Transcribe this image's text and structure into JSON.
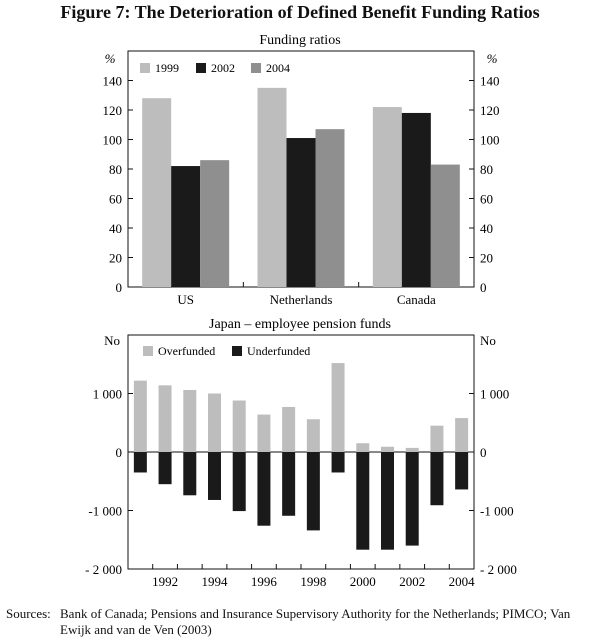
{
  "figure_title": "Figure 7: The Deterioration of Defined Benefit Funding Ratios",
  "sources_label": "Sources:",
  "sources_text": "Bank of Canada; Pensions and Insurance Supervisory Authority for the Netherlands; PIMCO; Van Ewijk and van de Ven (2003)",
  "colors": {
    "1999": "#bdbdbd",
    "2002": "#1a1a1a",
    "2004": "#8f8f8f",
    "overfunded": "#bdbdbd",
    "underfunded": "#1a1a1a"
  },
  "chart_data": [
    {
      "type": "bar",
      "title": "Funding ratios",
      "ylabel_left": "%",
      "ylabel_right": "%",
      "categories": [
        "US",
        "Netherlands",
        "Canada"
      ],
      "series": [
        {
          "name": "1999",
          "values": [
            128,
            135,
            122
          ]
        },
        {
          "name": "2002",
          "values": [
            82,
            101,
            118
          ]
        },
        {
          "name": "2004",
          "values": [
            86,
            107,
            83
          ]
        }
      ],
      "ylim": [
        0,
        160
      ],
      "yticks": [
        0,
        20,
        40,
        60,
        80,
        100,
        120,
        140
      ],
      "legend_position": "top-left",
      "grid": false
    },
    {
      "type": "bar",
      "title": "Japan – employee pension funds",
      "ylabel_left": "No",
      "ylabel_right": "No",
      "x": [
        1991,
        1992,
        1993,
        1994,
        1995,
        1996,
        1997,
        1998,
        1999,
        2000,
        2001,
        2002,
        2003,
        2004
      ],
      "xtick_labels": [
        "1992",
        "1994",
        "1996",
        "1998",
        "2000",
        "2002",
        "2004"
      ],
      "series": [
        {
          "name": "Overfunded",
          "values": [
            1220,
            1140,
            1060,
            1000,
            880,
            640,
            770,
            560,
            1520,
            150,
            90,
            70,
            450,
            580
          ]
        },
        {
          "name": "Underfunded",
          "values": [
            -350,
            -550,
            -740,
            -820,
            -1010,
            -1260,
            -1090,
            -1340,
            -350,
            -1670,
            -1670,
            -1600,
            -910,
            -640
          ]
        }
      ],
      "ylim": [
        -2000,
        2000
      ],
      "yticks": [
        -2000,
        -1000,
        0,
        1000
      ],
      "ytick_labels": [
        "- 2 000",
        "-1 000",
        "0",
        "1 000"
      ],
      "legend_position": "top-left",
      "grid": false
    }
  ]
}
